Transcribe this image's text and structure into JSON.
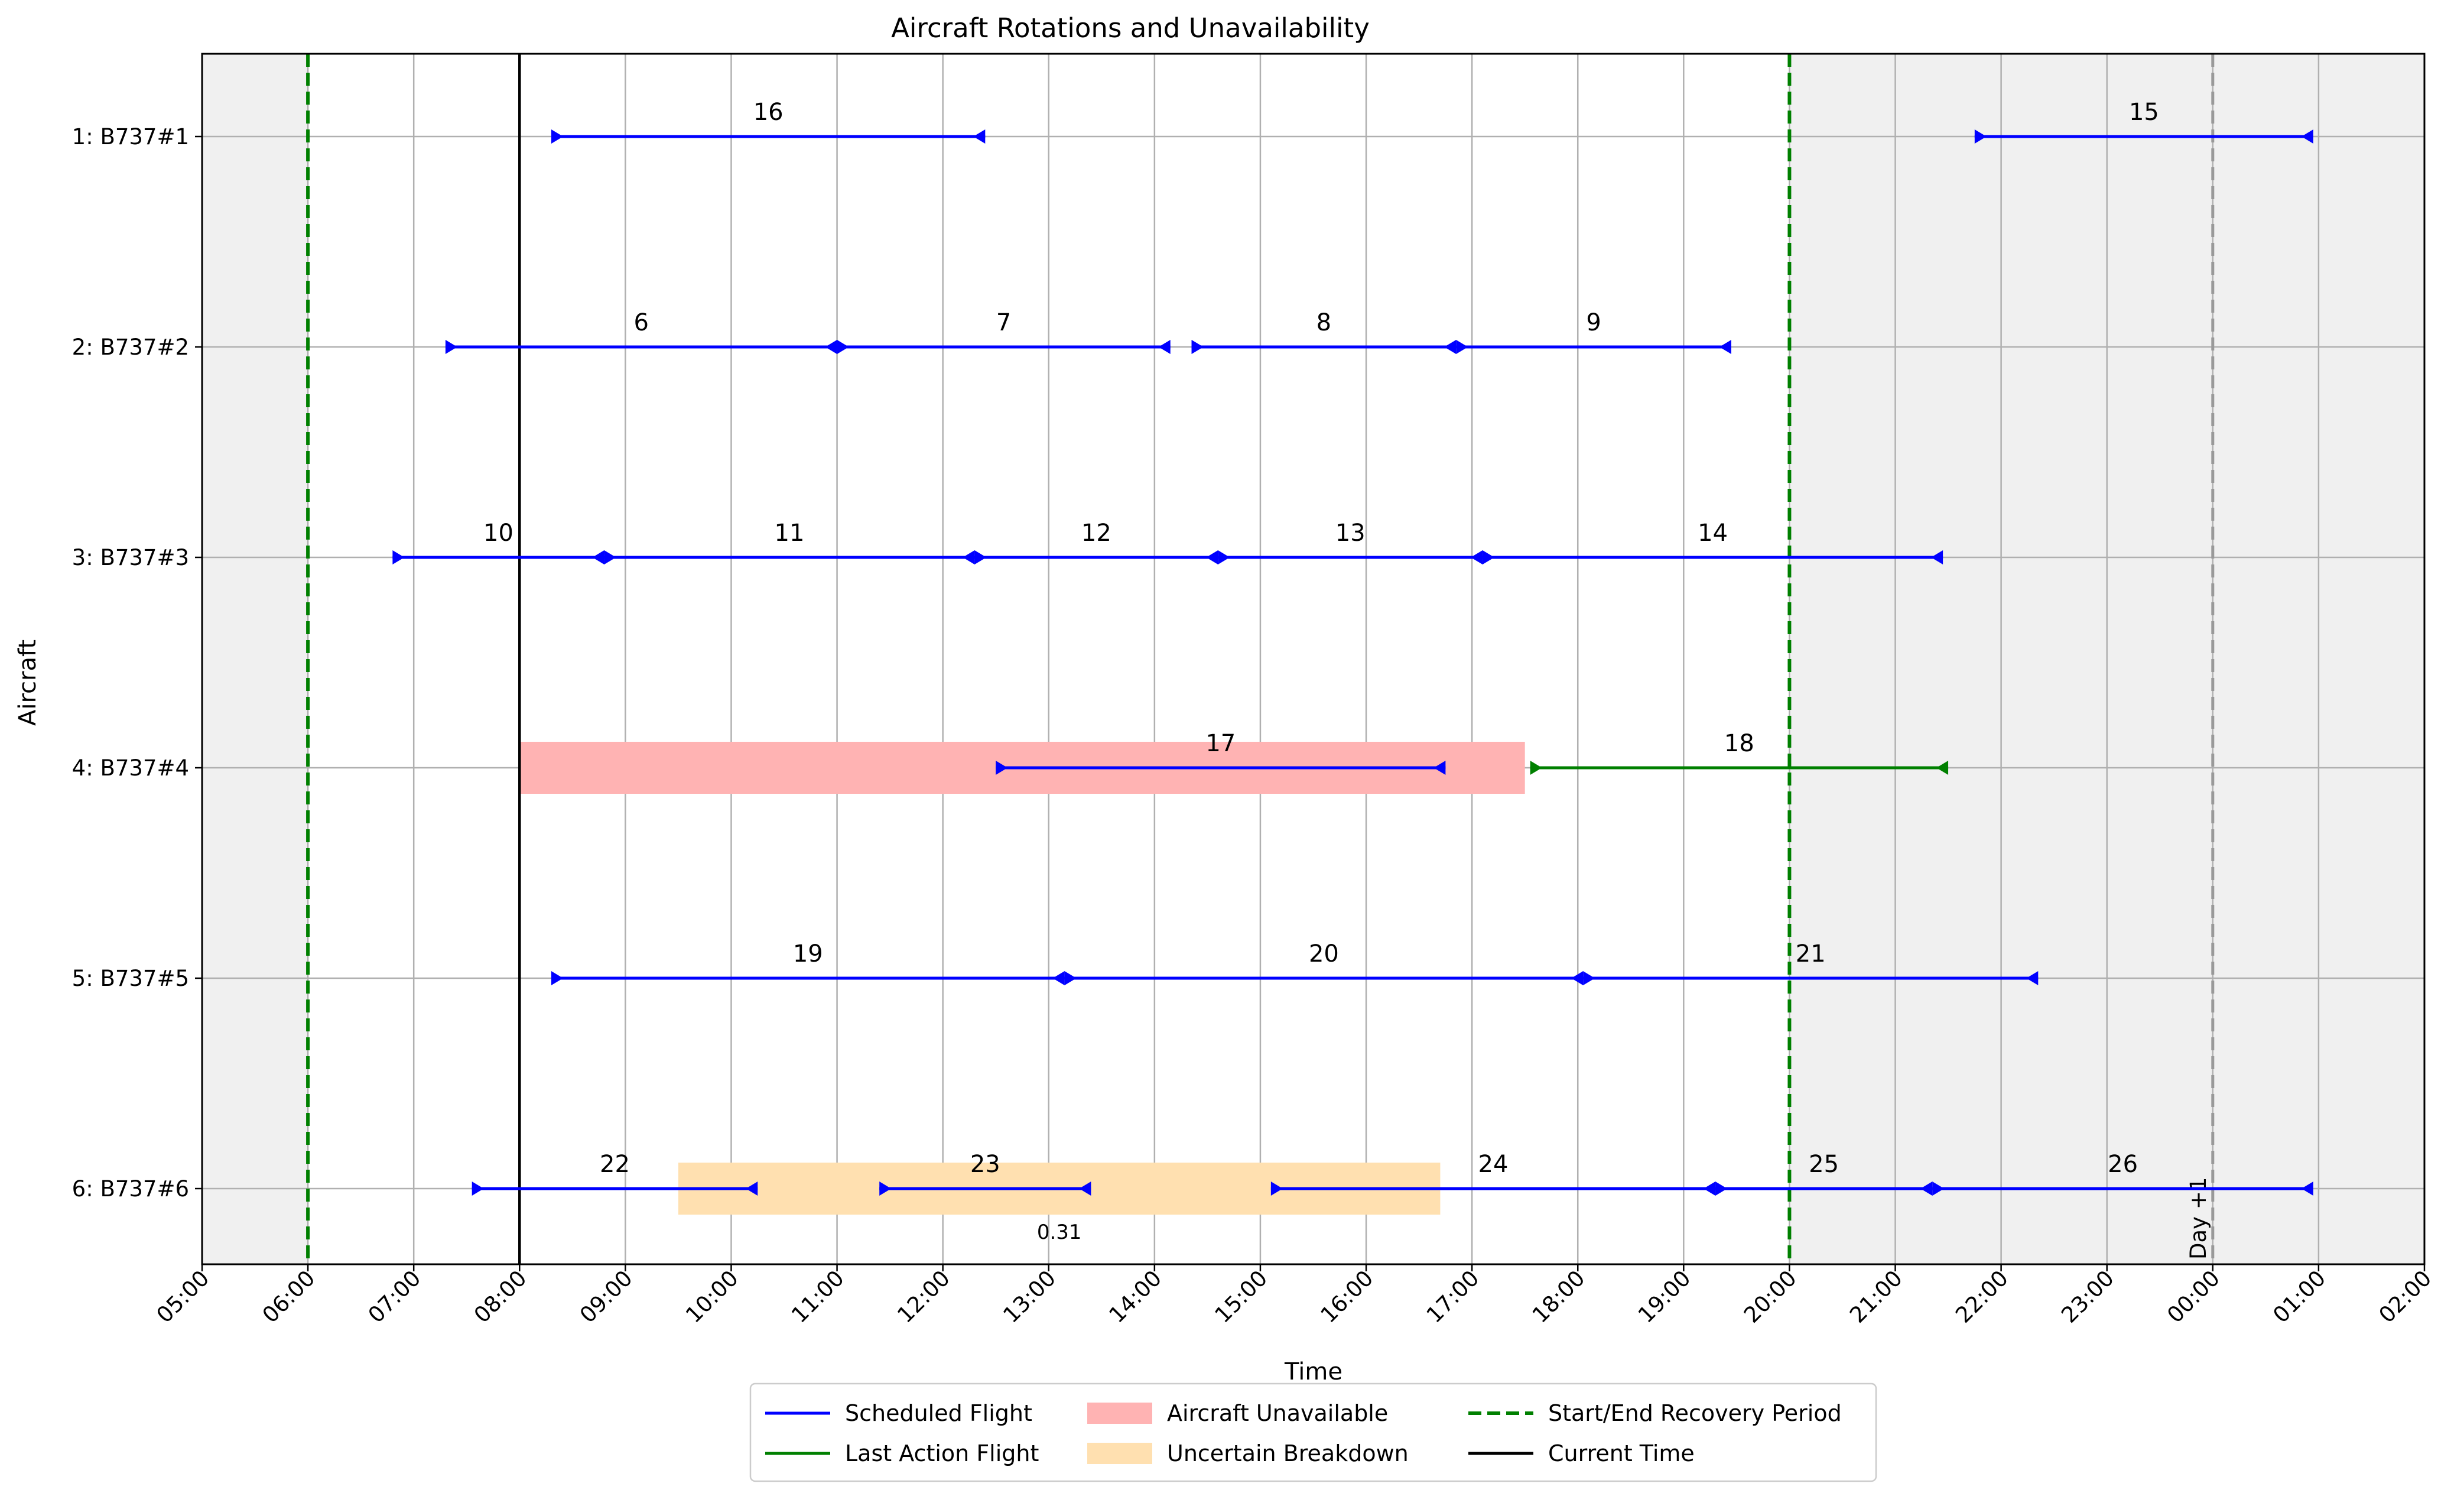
{
  "chart_data": {
    "type": "gantt",
    "title": "Aircraft Rotations and Unavailability",
    "xlabel": "Time",
    "ylabel": "Aircraft",
    "x_range_hours": [
      5,
      26
    ],
    "x_ticks": [
      "05:00",
      "06:00",
      "07:00",
      "08:00",
      "09:00",
      "10:00",
      "11:00",
      "12:00",
      "13:00",
      "14:00",
      "15:00",
      "16:00",
      "17:00",
      "18:00",
      "19:00",
      "20:00",
      "21:00",
      "22:00",
      "23:00",
      "00:00",
      "01:00",
      "02:00"
    ],
    "grid": true,
    "aircraft": [
      "1: B737#1",
      "2: B737#2",
      "3: B737#3",
      "4: B737#4",
      "5: B737#5",
      "6: B737#6"
    ],
    "recovery_period": {
      "start": 6,
      "end": 20
    },
    "current_time": 8,
    "day_marker": {
      "x": 24,
      "label": "Day +1"
    },
    "flights": [
      {
        "label": "16",
        "aircraft": 0,
        "start": 8.3,
        "end": 12.4,
        "kind": "scheduled"
      },
      {
        "label": "15",
        "aircraft": 0,
        "start": 21.75,
        "end": 24.95,
        "kind": "scheduled"
      },
      {
        "label": "6",
        "aircraft": 1,
        "start": 7.3,
        "end": 11.0,
        "kind": "scheduled"
      },
      {
        "label": "7",
        "aircraft": 1,
        "start": 11.0,
        "end": 14.15,
        "kind": "scheduled"
      },
      {
        "label": "8",
        "aircraft": 1,
        "start": 14.35,
        "end": 16.85,
        "kind": "scheduled"
      },
      {
        "label": "9",
        "aircraft": 1,
        "start": 16.85,
        "end": 19.45,
        "kind": "scheduled"
      },
      {
        "label": "10",
        "aircraft": 2,
        "start": 6.8,
        "end": 8.8,
        "kind": "scheduled"
      },
      {
        "label": "11",
        "aircraft": 2,
        "start": 8.8,
        "end": 12.3,
        "kind": "scheduled"
      },
      {
        "label": "12",
        "aircraft": 2,
        "start": 12.3,
        "end": 14.6,
        "kind": "scheduled"
      },
      {
        "label": "13",
        "aircraft": 2,
        "start": 14.6,
        "end": 17.1,
        "kind": "scheduled"
      },
      {
        "label": "14",
        "aircraft": 2,
        "start": 17.1,
        "end": 21.45,
        "kind": "scheduled"
      },
      {
        "label": "17",
        "aircraft": 3,
        "start": 12.5,
        "end": 16.75,
        "kind": "scheduled"
      },
      {
        "label": "18",
        "aircraft": 3,
        "start": 17.55,
        "end": 21.5,
        "kind": "last_action"
      },
      {
        "label": "19",
        "aircraft": 4,
        "start": 8.3,
        "end": 13.15,
        "kind": "scheduled"
      },
      {
        "label": "20",
        "aircraft": 4,
        "start": 13.15,
        "end": 18.05,
        "kind": "scheduled"
      },
      {
        "label": "21",
        "aircraft": 4,
        "start": 18.05,
        "end": 22.35,
        "kind": "scheduled"
      },
      {
        "label": "22",
        "aircraft": 5,
        "start": 7.55,
        "end": 10.25,
        "kind": "scheduled"
      },
      {
        "label": "23",
        "aircraft": 5,
        "start": 11.4,
        "end": 13.4,
        "kind": "scheduled"
      },
      {
        "label": "24",
        "aircraft": 5,
        "start": 15.1,
        "end": 19.3,
        "kind": "scheduled"
      },
      {
        "label": "25",
        "aircraft": 5,
        "start": 19.3,
        "end": 21.35,
        "kind": "scheduled"
      },
      {
        "label": "26",
        "aircraft": 5,
        "start": 21.35,
        "end": 24.95,
        "kind": "scheduled"
      }
    ],
    "unavailability": [
      {
        "aircraft": 3,
        "start": 8.0,
        "end": 17.5,
        "kind": "unavailable"
      },
      {
        "aircraft": 5,
        "start": 9.5,
        "end": 16.7,
        "kind": "uncertain",
        "probability_label": "0.31"
      }
    ],
    "legend": {
      "placement": "bottom-center",
      "entries": [
        {
          "label": "Scheduled Flight",
          "kind": "line",
          "color": "#0000ff"
        },
        {
          "label": "Last Action Flight",
          "kind": "line",
          "color": "#008000"
        },
        {
          "label": "Aircraft Unavailable",
          "kind": "patch",
          "color": "#ffb3b3"
        },
        {
          "label": "Uncertain Breakdown",
          "kind": "patch",
          "color": "#ffe0b0"
        },
        {
          "label": "Start/End Recovery Period",
          "kind": "dashed",
          "color": "#008000"
        },
        {
          "label": "Current Time",
          "kind": "line",
          "color": "#000000"
        }
      ]
    },
    "colors": {
      "scheduled": "#0000ff",
      "last_action": "#008000",
      "unavailable": "#ffb3b3",
      "uncertain": "#ffe0b0",
      "outside_shade": "#f0f0f0",
      "grid": "#b0b0b0"
    }
  }
}
